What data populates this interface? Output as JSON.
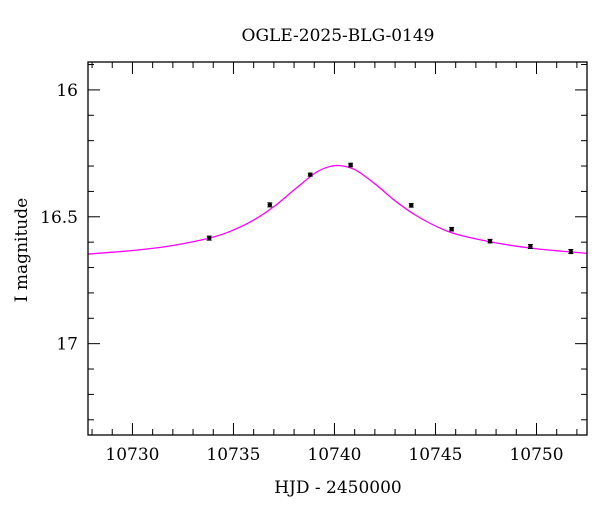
{
  "chart_data": {
    "type": "scatter",
    "title": "OGLE-2025-BLG-0149",
    "xlabel": "HJD - 2450000",
    "ylabel": "I magnitude",
    "xlim": [
      10727.8,
      10752.5
    ],
    "ylim": [
      17.36,
      15.89
    ],
    "y_inverted": true,
    "x_major_ticks": [
      10730,
      10735,
      10740,
      10745,
      10750
    ],
    "x_tick_labels": [
      "10730",
      "10735",
      "10740",
      "10745",
      "10750"
    ],
    "y_major_ticks": [
      16,
      16.5,
      17
    ],
    "y_tick_labels": [
      "16",
      "16.5",
      "17"
    ],
    "x_minor_step": 1,
    "y_minor_step": 0.1,
    "grid": false,
    "series": [
      {
        "kind": "points",
        "color": "#000000",
        "x": [
          10733.8,
          10736.8,
          10738.8,
          10740.8,
          10743.8,
          10745.8,
          10747.7,
          10749.7,
          10751.7
        ],
        "y": [
          16.584,
          16.453,
          16.334,
          16.296,
          16.455,
          16.549,
          16.596,
          16.617,
          16.637
        ],
        "err": [
          0.008,
          0.008,
          0.006,
          0.007,
          0.007,
          0.007,
          0.007,
          0.008,
          0.008
        ]
      },
      {
        "kind": "model",
        "color": "#ff00ff",
        "x": [
          10727.8,
          10730,
          10732,
          10734,
          10735,
          10736,
          10737,
          10738,
          10739,
          10739.6,
          10740.2,
          10741,
          10742,
          10743,
          10744,
          10745,
          10746,
          10748,
          10750,
          10752.5
        ],
        "y": [
          16.647,
          16.633,
          16.613,
          16.58,
          16.552,
          16.513,
          16.46,
          16.394,
          16.33,
          16.306,
          16.298,
          16.314,
          16.37,
          16.437,
          16.493,
          16.536,
          16.568,
          16.603,
          16.626,
          16.644
        ]
      }
    ]
  }
}
